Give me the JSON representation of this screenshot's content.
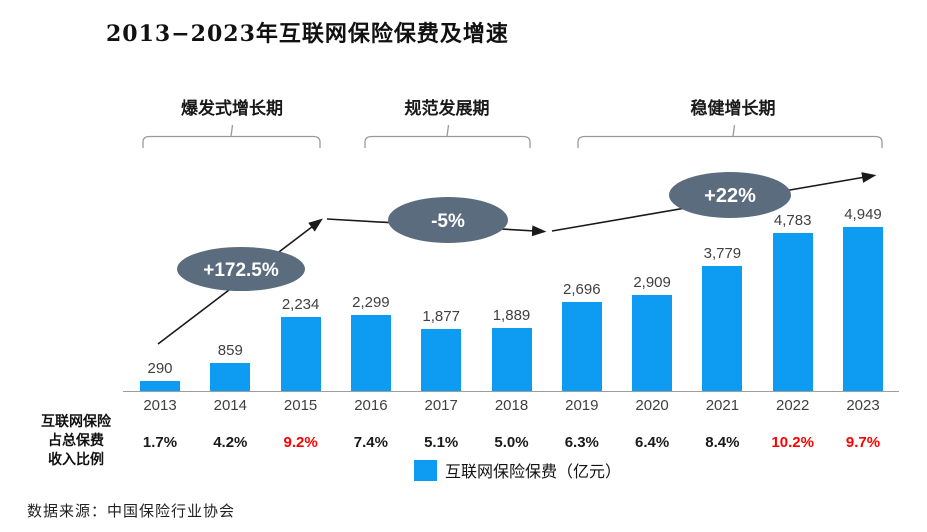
{
  "title": "2013−2023年互联网保险保费及增速",
  "phases": [
    {
      "label": "爆发式增长期"
    },
    {
      "label": "规范发展期"
    },
    {
      "label": "稳健增长期"
    }
  ],
  "annotations": [
    {
      "text": "+172.5%"
    },
    {
      "text": "-5%"
    },
    {
      "text": "+22%"
    }
  ],
  "share_label_lines": [
    "互联网保险",
    "占总保费",
    "收入比例"
  ],
  "legend_label": "互联网保险保费（亿元）",
  "source": "数据来源：中国保险行业协会",
  "colors": {
    "bar": "#0D9CF2",
    "annotation_bubble": "#5B6C7E",
    "highlight_red": "#FF0000",
    "trend_line": "#1a1a1a",
    "bracket": "#9a9a9a"
  },
  "chart_data": {
    "type": "bar",
    "title": "2013−2023年互联网保险保费及增速",
    "categories": [
      "2013",
      "2014",
      "2015",
      "2016",
      "2017",
      "2018",
      "2019",
      "2020",
      "2021",
      "2022",
      "2023"
    ],
    "series": [
      {
        "name": "互联网保险保费（亿元）",
        "values": [
          290,
          859,
          2234,
          2299,
          1877,
          1889,
          2696,
          2909,
          3779,
          4783,
          4949
        ]
      }
    ],
    "bar_value_labels": [
      "290",
      "859",
      "2,234",
      "2,299",
      "1,877",
      "1,889",
      "2,696",
      "2,909",
      "3,779",
      "4,783",
      "4,949"
    ],
    "share_row": {
      "name": "互联网保险占总保费收入比例",
      "values": [
        {
          "text": "1.7%",
          "highlight": false
        },
        {
          "text": "4.2%",
          "highlight": false
        },
        {
          "text": "9.2%",
          "highlight": true
        },
        {
          "text": "7.4%",
          "highlight": false
        },
        {
          "text": "5.1%",
          "highlight": false
        },
        {
          "text": "5.0%",
          "highlight": false
        },
        {
          "text": "6.3%",
          "highlight": false
        },
        {
          "text": "6.4%",
          "highlight": false
        },
        {
          "text": "8.4%",
          "highlight": false
        },
        {
          "text": "10.2%",
          "highlight": true
        },
        {
          "text": "9.7%",
          "highlight": true
        }
      ]
    },
    "growth_annotations": [
      "+172.5%",
      "-5%",
      "+22%"
    ],
    "phase_periods": [
      "爆发式增长期",
      "规范发展期",
      "稳健增长期"
    ],
    "legend_position": "bottom",
    "grid": false,
    "ylim": [
      0,
      5000
    ]
  }
}
